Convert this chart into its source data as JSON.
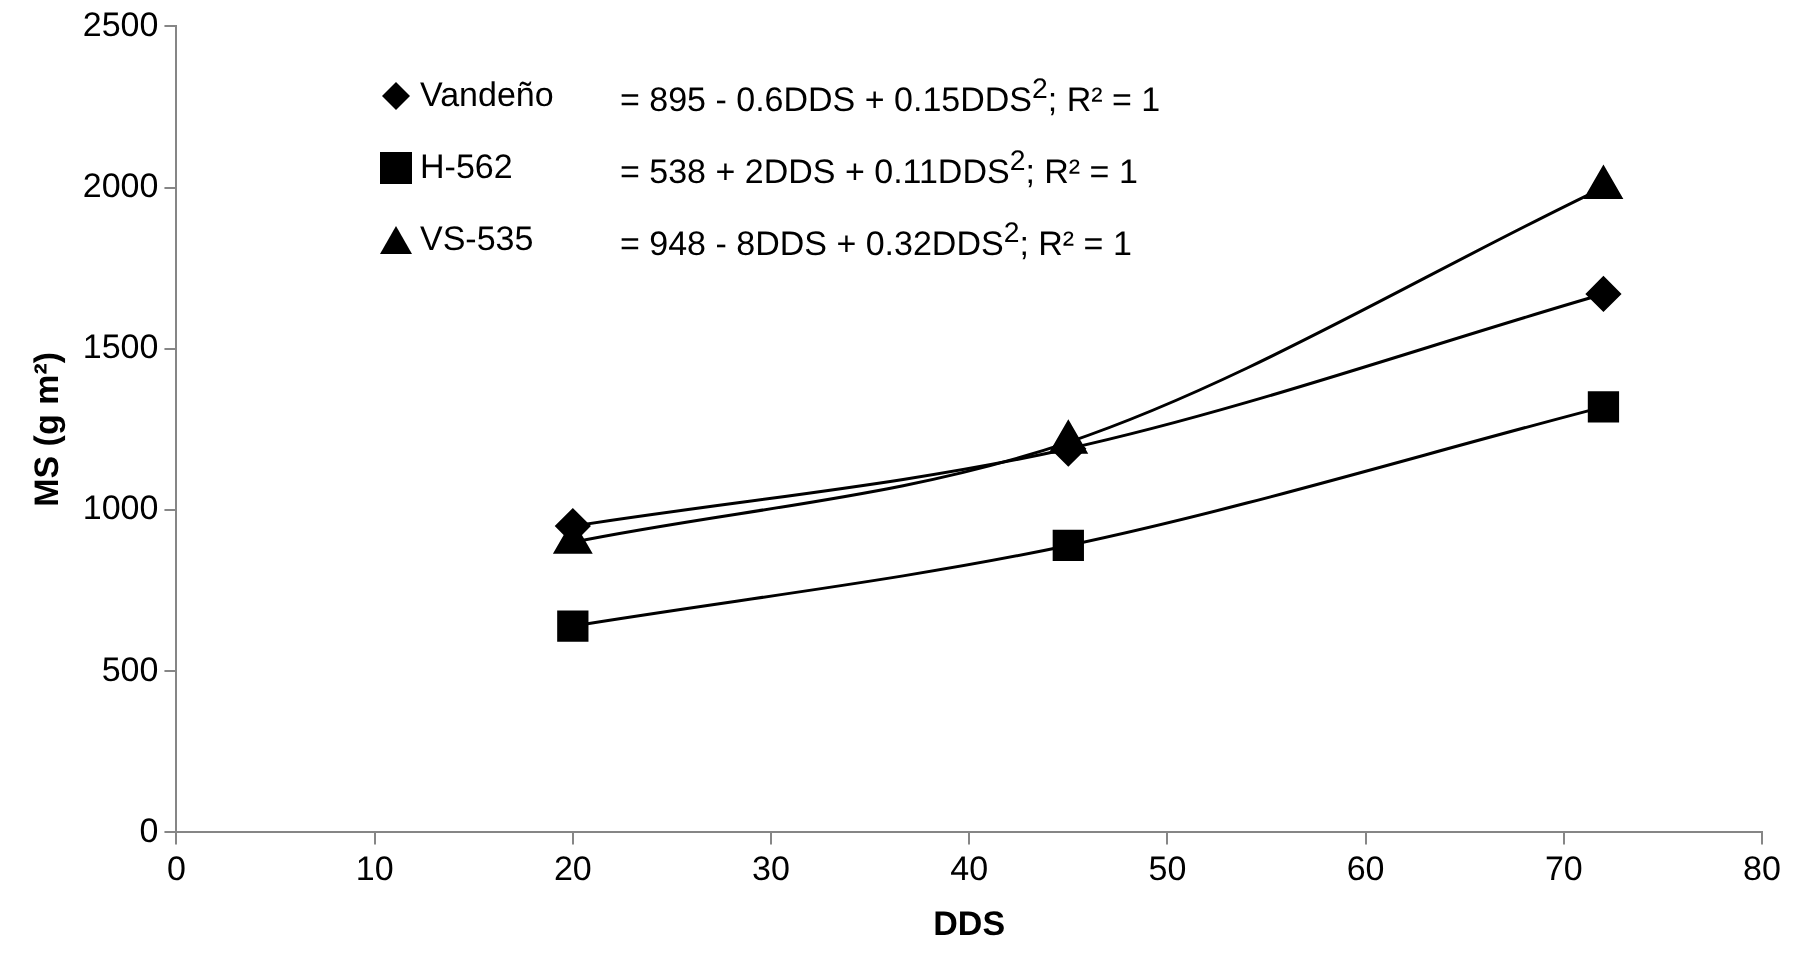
{
  "chart_data": {
    "type": "line",
    "xlabel": "DDS",
    "ylabel": "MS (g m²)",
    "xlim": [
      0,
      80
    ],
    "xticks": [
      0,
      10,
      20,
      30,
      40,
      50,
      60,
      70,
      80
    ],
    "ylim": [
      0,
      2500
    ],
    "yticks": [
      0,
      500,
      1000,
      1500,
      2000,
      2500
    ],
    "grid": false,
    "legend": "top left",
    "line_style": "solid",
    "series": [
      {
        "name": "Vandeño",
        "color": "#000000",
        "marker": "diamond",
        "x": [
          20,
          45,
          72
        ],
        "values": [
          950,
          1190,
          1670
        ]
      },
      {
        "name": "H-562",
        "color": "#000000",
        "marker": "square",
        "x": [
          20,
          45,
          72
        ],
        "values": [
          640,
          890,
          1320
        ]
      },
      {
        "name": "VS-535",
        "color": "#000000",
        "marker": "triangle",
        "x": [
          20,
          45,
          72
        ],
        "values": [
          900,
          1210,
          2000
        ]
      }
    ],
    "annotations": [
      "= 895 - 0.6DDS + 0.15DDS$^{2}$; R² = 1",
      "= 538 + 2DDS + 0.11DDS$^{2}$; R² = 1",
      "= 948 - 8DDS + 0.32DDS$^{2}$; R² = 1"
    ]
  }
}
